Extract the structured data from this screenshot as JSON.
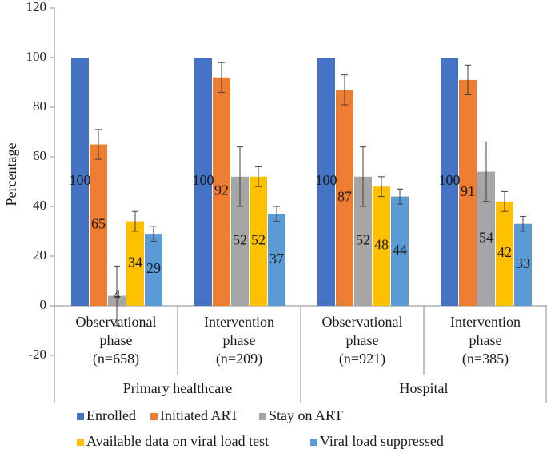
{
  "chart_data": {
    "type": "bar",
    "ylabel": "Percentage",
    "ylim": [
      -20,
      120
    ],
    "yticks": [
      -20,
      0,
      20,
      40,
      60,
      80,
      100,
      120
    ],
    "grid": false,
    "legend_position": "bottom",
    "categories": [
      [
        "Observational",
        "phase",
        "(n=658)"
      ],
      [
        "Intervention",
        "phase",
        "(n=209)"
      ],
      [
        "Observational",
        "phase",
        "(n=921)"
      ],
      [
        "Intervention",
        "phase",
        "(n=385)"
      ]
    ],
    "groups": [
      {
        "label": "Primary healthcare",
        "span": [
          0,
          1
        ]
      },
      {
        "label": "Hospital",
        "span": [
          2,
          3
        ]
      }
    ],
    "series": [
      {
        "name": "Enrolled",
        "color": "#4472C4",
        "values": [
          100,
          100,
          100,
          100
        ],
        "err_low": [
          null,
          null,
          null,
          null
        ],
        "err_high": [
          null,
          null,
          null,
          null
        ]
      },
      {
        "name": "Initiated ART",
        "color": "#ED7D31",
        "values": [
          65,
          92,
          87,
          91
        ],
        "err_low": [
          59,
          86,
          81,
          85
        ],
        "err_high": [
          71,
          98,
          93,
          97
        ]
      },
      {
        "name": "Stay on ART",
        "color": "#A5A5A5",
        "values": [
          4,
          52,
          52,
          54
        ],
        "err_low": [
          -8,
          40,
          40,
          42
        ],
        "err_high": [
          16,
          64,
          64,
          66
        ]
      },
      {
        "name": "Available data on viral load test",
        "color": "#FFC000",
        "values": [
          34,
          52,
          48,
          42
        ],
        "err_low": [
          30,
          48,
          44,
          38
        ],
        "err_high": [
          38,
          56,
          52,
          46
        ]
      },
      {
        "name": "Viral load suppressed",
        "color": "#5B9BD5",
        "values": [
          29,
          37,
          44,
          33
        ],
        "err_low": [
          26,
          34,
          41,
          30
        ],
        "err_high": [
          32,
          40,
          47,
          36
        ]
      }
    ]
  }
}
